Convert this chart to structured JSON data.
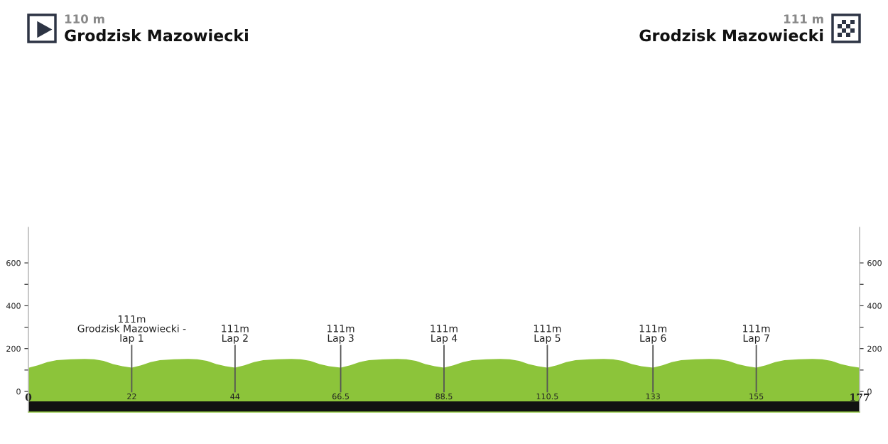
{
  "chart_data": {
    "type": "area",
    "annotations": [
      "110 m",
      "Grodzisk Mazowiecki",
      "111 m",
      "Grodzisk Mazowiecki"
    ],
    "series": [
      {
        "color": "#8cc43a",
        "x": [
          0,
          2,
          4,
          6,
          9,
          12,
          14,
          16,
          18,
          20,
          22,
          24,
          26,
          28,
          31,
          34,
          36,
          38,
          40,
          42,
          44,
          46,
          48,
          50,
          53,
          56,
          58,
          60,
          62,
          64,
          66.5,
          68.5,
          70.5,
          72.5,
          75.5,
          78.5,
          80.5,
          82.5,
          84.5,
          86.5,
          88.5,
          90.5,
          92.5,
          94.5,
          97.5,
          100.5,
          102.5,
          104.5,
          106.5,
          108.5,
          110.5,
          112.5,
          114.5,
          116.5,
          119.5,
          122.5,
          124.5,
          126.5,
          128.5,
          130.5,
          133,
          135,
          137,
          139,
          142,
          145,
          147,
          149,
          151,
          153,
          155,
          157,
          159,
          161,
          164,
          167,
          169,
          171,
          173,
          175,
          177
        ],
        "values": [
          110,
          122,
          137,
          146,
          150,
          152,
          150,
          143,
          128,
          118,
          111,
          122,
          137,
          146,
          150,
          152,
          150,
          143,
          128,
          118,
          111,
          122,
          137,
          146,
          150,
          152,
          150,
          143,
          128,
          118,
          111,
          122,
          137,
          146,
          150,
          152,
          150,
          143,
          128,
          118,
          111,
          122,
          137,
          146,
          150,
          152,
          150,
          143,
          128,
          118,
          111,
          122,
          137,
          146,
          150,
          152,
          150,
          143,
          128,
          118,
          111,
          122,
          137,
          146,
          150,
          152,
          150,
          143,
          128,
          118,
          111,
          122,
          137,
          146,
          150,
          152,
          150,
          143,
          128,
          118,
          111
        ]
      }
    ],
    "xlim": [
      0,
      177
    ],
    "xticks": [
      0,
      22,
      44,
      66.5,
      88.5,
      110.5,
      133,
      155,
      177
    ],
    "ylim": [
      -96,
      766
    ],
    "yticks": [
      0,
      {
        "value": 100,
        "label": null
      },
      200,
      {
        "value": 300,
        "label": null
      },
      400,
      {
        "value": 500,
        "label": null
      },
      600
    ],
    "y2lim": [
      -96,
      766
    ],
    "y2ticks": [
      0,
      {
        "value": 100,
        "label": null
      },
      200,
      {
        "value": 300,
        "label": null
      },
      400,
      {
        "value": 500,
        "label": null
      },
      600
    ],
    "bands": [
      {
        "axis": "y",
        "from": -96,
        "to": -46,
        "color": "#111111"
      },
      {
        "axis": "y",
        "from": -46,
        "to": 0,
        "color": "#8cc43a"
      }
    ],
    "ref_lines": [
      {
        "axis": "x",
        "value": 22,
        "label": "111m\nGrodzisk Mazowiecki -\nlap 1"
      },
      {
        "axis": "x",
        "value": 44,
        "label": "111m\nLap 2"
      },
      {
        "axis": "x",
        "value": 66.5,
        "label": "111m\nLap 3"
      },
      {
        "axis": "x",
        "value": 88.5,
        "label": "111m\nLap 4"
      },
      {
        "axis": "x",
        "value": 110.5,
        "label": "111m\nLap 5"
      },
      {
        "axis": "x",
        "value": 133,
        "label": "111m\nLap 6"
      },
      {
        "axis": "x",
        "value": 155,
        "label": "111m\nLap 7"
      }
    ],
    "grid": false,
    "legend": false
  }
}
